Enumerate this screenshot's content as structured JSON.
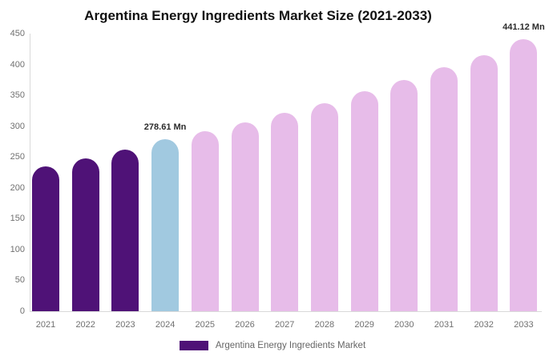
{
  "chart_data": {
    "type": "bar",
    "title": "Argentina Energy Ingredients Market Size (2021-2033)",
    "categories": [
      "2021",
      "2022",
      "2023",
      "2024",
      "2025",
      "2026",
      "2027",
      "2028",
      "2029",
      "2030",
      "2031",
      "2032",
      "2033"
    ],
    "series": [
      {
        "name": "Argentina Energy Ingredients Market",
        "values": [
          235,
          248,
          262,
          278.61,
          292,
          306,
          321,
          337,
          356,
          375,
          395,
          415,
          441.12
        ]
      }
    ],
    "bar_colors": [
      "#4f1277",
      "#4f1277",
      "#4f1277",
      "#a1c9e0",
      "#e7bce9",
      "#e7bce9",
      "#e7bce9",
      "#e7bce9",
      "#e7bce9",
      "#e7bce9",
      "#e7bce9",
      "#e7bce9",
      "#e7bce9"
    ],
    "data_labels": [
      {
        "category": "2024",
        "text": "278.61 Mn"
      },
      {
        "category": "2033",
        "text": "441.12 Mn"
      }
    ],
    "xlabel": "",
    "ylabel": "",
    "ylim": [
      0,
      450
    ],
    "yticks": [
      0,
      50,
      100,
      150,
      200,
      250,
      300,
      350,
      400,
      450
    ],
    "grid": false,
    "legend_position": "bottom"
  },
  "legend": {
    "label": "Argentina Energy Ingredients Market",
    "swatch_color": "#4f1277"
  },
  "colors": {
    "historical_bar": "#4f1277",
    "highlight_bar": "#a1c9e0",
    "forecast_bar": "#e7bce9",
    "axis_line": "#d9d9d9",
    "tick_text": "#707070",
    "title_text": "#111111",
    "data_label_text": "#2b2b2b"
  }
}
